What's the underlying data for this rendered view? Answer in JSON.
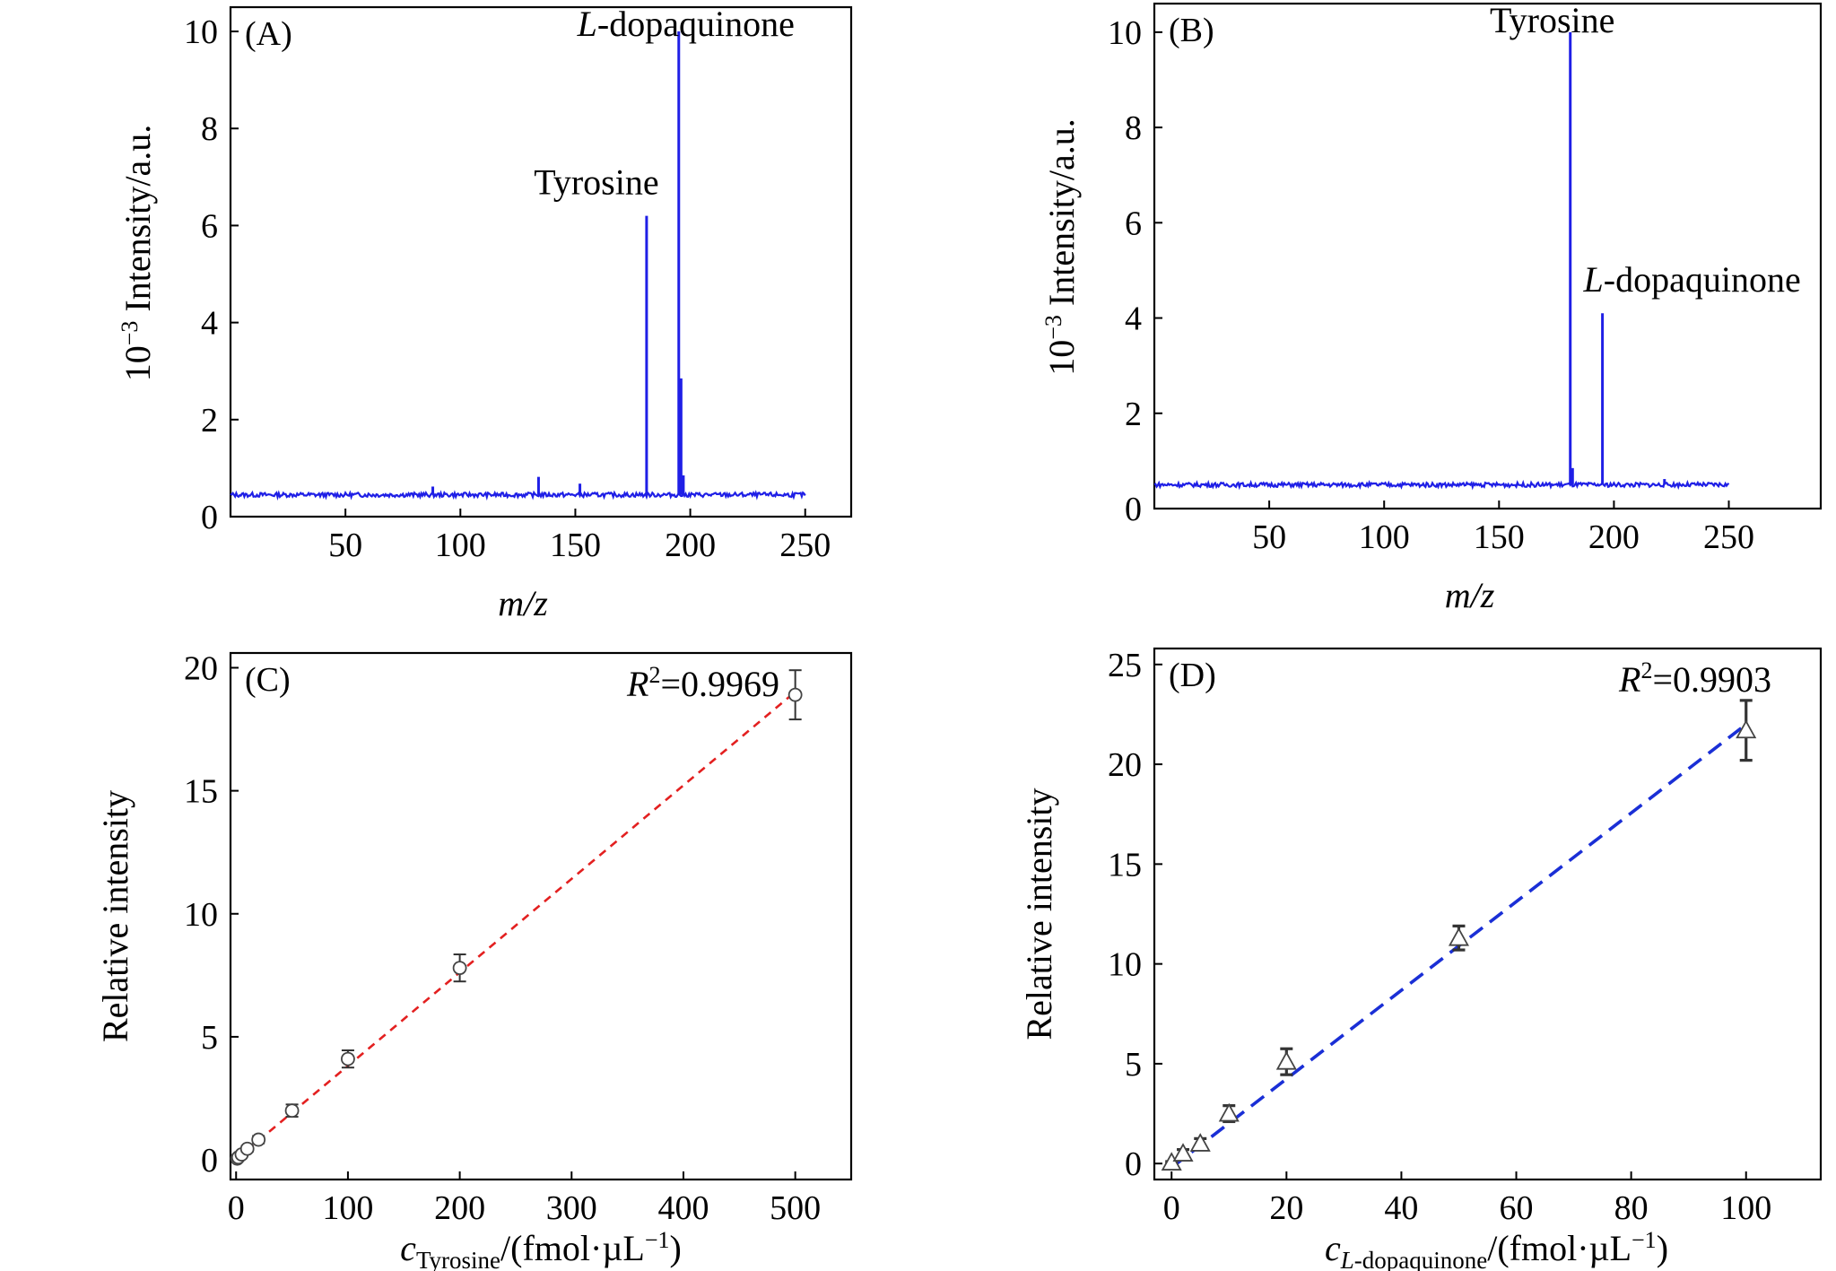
{
  "panels": [
    {
      "id": "A",
      "type": "line",
      "panel_label": "(A)",
      "xlabel": "m/z",
      "ylabel_prefix": "10",
      "ylabel_exp": "−3",
      "ylabel_suffix": " Intensity/a.u.",
      "xlim": [
        0,
        270
      ],
      "ylim": [
        0,
        10.5
      ],
      "xticks": [
        50,
        100,
        150,
        200,
        250
      ],
      "yticks": [
        0,
        2,
        4,
        6,
        8,
        10
      ],
      "baseline": 0.45,
      "x_end": 250,
      "color": "#1f1fe6",
      "peaks": [
        {
          "mz": 88,
          "intensity": 0.62
        },
        {
          "mz": 134,
          "intensity": 0.82
        },
        {
          "mz": 152,
          "intensity": 0.68
        },
        {
          "mz": 181,
          "intensity": 6.2
        },
        {
          "mz": 195,
          "intensity": 10.0
        },
        {
          "mz": 196,
          "intensity": 2.85
        },
        {
          "mz": 197,
          "intensity": 0.85
        }
      ],
      "annotations": [
        {
          "italic": "",
          "text": "Tyrosine",
          "mz": 181
        },
        {
          "italic": "L",
          "text": "-dopaquinone",
          "mz": 195
        }
      ]
    },
    {
      "id": "B",
      "type": "line",
      "panel_label": "(B)",
      "xlabel": "m/z",
      "ylabel_prefix": "10",
      "ylabel_exp": "−3",
      "ylabel_suffix": " Intensity/a.u.",
      "xlim": [
        0,
        290
      ],
      "ylim": [
        0,
        10.6
      ],
      "xticks": [
        50,
        100,
        150,
        200,
        250
      ],
      "yticks": [
        0,
        2,
        4,
        6,
        8,
        10
      ],
      "baseline": 0.5,
      "x_end": 250,
      "color": "#1f1fe6",
      "peaks": [
        {
          "mz": 181,
          "intensity": 10.0
        },
        {
          "mz": 182,
          "intensity": 0.85
        },
        {
          "mz": 195,
          "intensity": 4.1
        },
        {
          "mz": 222,
          "intensity": 0.62
        }
      ],
      "annotations": [
        {
          "italic": "",
          "text": "Tyrosine",
          "mz": 181
        },
        {
          "italic": "L",
          "text": "-dopaquinone",
          "mz": 195
        }
      ]
    },
    {
      "id": "C",
      "type": "scatter",
      "panel_label": "(C)",
      "xlabel_var": "c",
      "xlabel_sub": "Tyrosine",
      "xlabel_unit": "/(fmol·µL",
      "xlabel_exp": "−1",
      "xlabel_close": ")",
      "ylabel": "Relative intensity",
      "xlim": [
        -5,
        550
      ],
      "ylim": [
        -0.8,
        20.6
      ],
      "xticks": [
        0,
        100,
        200,
        300,
        400,
        500
      ],
      "yticks": [
        0,
        5,
        10,
        15,
        20
      ],
      "r2_label": "R",
      "r2_value": "2",
      "r2_text": "=0.9969",
      "marker": "circle",
      "fit_color": "#e32020",
      "fit": {
        "slope": 0.038,
        "intercept": 0.02,
        "x_range": [
          0,
          500
        ]
      },
      "points": [
        {
          "x": 1,
          "y": 0.05,
          "err": 0.05
        },
        {
          "x": 2,
          "y": 0.1,
          "err": 0.05
        },
        {
          "x": 5,
          "y": 0.22,
          "err": 0.08
        },
        {
          "x": 10,
          "y": 0.45,
          "err": 0.12
        },
        {
          "x": 20,
          "y": 0.82,
          "err": 0.15
        },
        {
          "x": 50,
          "y": 2.0,
          "err": 0.25
        },
        {
          "x": 100,
          "y": 4.1,
          "err": 0.35
        },
        {
          "x": 200,
          "y": 7.8,
          "err": 0.55
        },
        {
          "x": 500,
          "y": 18.9,
          "err": 1.0
        }
      ]
    },
    {
      "id": "D",
      "type": "scatter",
      "panel_label": "(D)",
      "xlabel_var": "c",
      "xlabel_sub": "L-dopaquinone",
      "xlabel_unit": "/(fmol·µL",
      "xlabel_exp": "−1",
      "xlabel_close": ")",
      "ylabel": "Relative intensity",
      "xlim": [
        -3,
        113
      ],
      "ylim": [
        -0.8,
        25.8
      ],
      "xticks": [
        0,
        20,
        40,
        60,
        80,
        100
      ],
      "yticks": [
        0,
        5,
        10,
        15,
        20,
        25
      ],
      "r2_label": "R",
      "r2_value": "2",
      "r2_text": "=0.9903",
      "marker": "triangle",
      "fit_color": "#1a2fd6",
      "fit": {
        "slope": 0.222,
        "intercept": -0.2,
        "x_range": [
          0,
          100
        ]
      },
      "points": [
        {
          "x": 0,
          "y": 0.05,
          "err": 0.05
        },
        {
          "x": 2,
          "y": 0.5,
          "err": 0.2
        },
        {
          "x": 5,
          "y": 1.0,
          "err": 0.25
        },
        {
          "x": 10,
          "y": 2.5,
          "err": 0.4
        },
        {
          "x": 20,
          "y": 5.1,
          "err": 0.65
        },
        {
          "x": 50,
          "y": 11.3,
          "err": 0.6
        },
        {
          "x": 100,
          "y": 21.7,
          "err": 1.5
        }
      ]
    }
  ],
  "chart_data": [
    {
      "type": "line",
      "title": "(A)",
      "xlabel": "m/z",
      "ylabel": "10−3 Intensity/a.u.",
      "xlim": [
        0,
        270
      ],
      "ylim": [
        0,
        10.5
      ],
      "x": [
        88,
        134,
        152,
        181,
        195,
        196,
        197
      ],
      "values": [
        0.62,
        0.82,
        0.68,
        6.2,
        10.0,
        2.85,
        0.85
      ],
      "annotations": [
        "Tyrosine",
        "L-dopaquinone"
      ]
    },
    {
      "type": "line",
      "title": "(B)",
      "xlabel": "m/z",
      "ylabel": "10−3 Intensity/a.u.",
      "xlim": [
        0,
        290
      ],
      "ylim": [
        0,
        10.6
      ],
      "x": [
        181,
        182,
        195,
        222
      ],
      "values": [
        10.0,
        0.85,
        4.1,
        0.62
      ],
      "annotations": [
        "Tyrosine",
        "L-dopaquinone"
      ]
    },
    {
      "type": "scatter",
      "title": "(C)",
      "xlabel": "cTyrosine/(fmol·µL−1)",
      "ylabel": "Relative intensity",
      "xlim": [
        -5,
        550
      ],
      "ylim": [
        -0.8,
        20.6
      ],
      "x": [
        1,
        2,
        5,
        10,
        20,
        50,
        100,
        200,
        500
      ],
      "values": [
        0.05,
        0.1,
        0.22,
        0.45,
        0.82,
        2.0,
        4.1,
        7.8,
        18.9
      ],
      "annotation": "R2=0.9969"
    },
    {
      "type": "scatter",
      "title": "(D)",
      "xlabel": "cL-dopaquinone/(fmol·µL−1)",
      "ylabel": "Relative intensity",
      "xlim": [
        -3,
        113
      ],
      "ylim": [
        -0.8,
        25.8
      ],
      "x": [
        0,
        2,
        5,
        10,
        20,
        50,
        100
      ],
      "values": [
        0.05,
        0.5,
        1.0,
        2.5,
        5.1,
        11.3,
        21.7
      ],
      "annotation": "R2=0.9903"
    }
  ]
}
